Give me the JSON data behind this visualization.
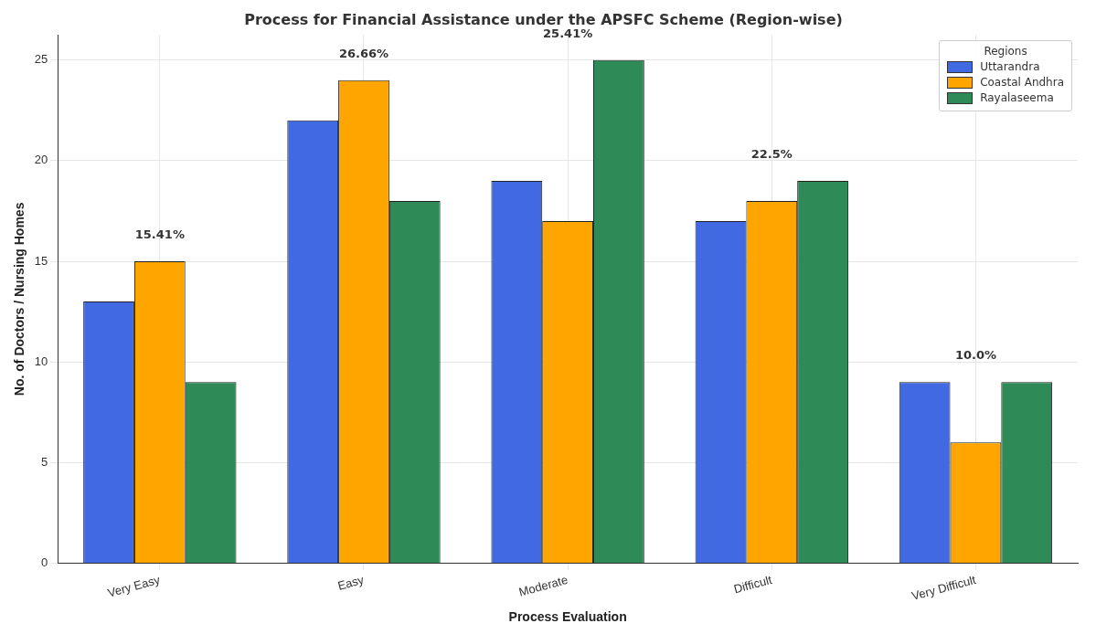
{
  "chart_data": {
    "type": "bar",
    "title": "Process for Financial Assistance under the APSFC Scheme (Region-wise)",
    "xlabel": "Process Evaluation",
    "ylabel": "No. of Doctors / Nursing Homes",
    "legend_title": "Regions",
    "categories": [
      "Very Easy",
      "Easy",
      "Moderate",
      "Difficult",
      "Very Difficult"
    ],
    "series": [
      {
        "name": "Uttarandra",
        "color": "#4169e1",
        "values": [
          13,
          22,
          19,
          17,
          9
        ]
      },
      {
        "name": "Coastal Andhra",
        "color": "#ffa500",
        "values": [
          15,
          24,
          17,
          18,
          6
        ]
      },
      {
        "name": "Rayalaseema",
        "color": "#2e8b57",
        "values": [
          9,
          18,
          25,
          19,
          9
        ]
      }
    ],
    "ylim": [
      0,
      26.25
    ],
    "yticks": [
      0,
      5,
      10,
      15,
      20,
      25
    ],
    "grid": true,
    "legend": "top right",
    "annotations": [
      "15.41%",
      "26.66%",
      "25.41%",
      "22.5%",
      "10.0%"
    ]
  }
}
